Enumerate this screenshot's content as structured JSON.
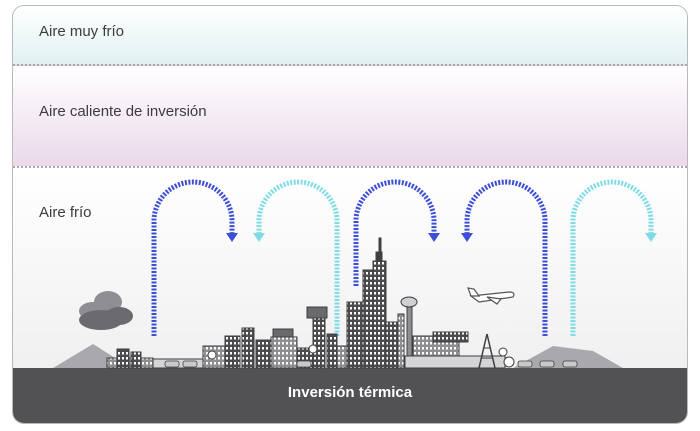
{
  "labels": {
    "very_cold_air": "Aire muy frío",
    "warm_inversion_air": "Aire caliente de inversión",
    "cold_air": "Aire frío",
    "thermal_inversion": "Inversión térmica"
  },
  "colors": {
    "arrow_dark": "#3d4fd6",
    "arrow_light": "#7fdbe6",
    "ground": "#525254"
  }
}
